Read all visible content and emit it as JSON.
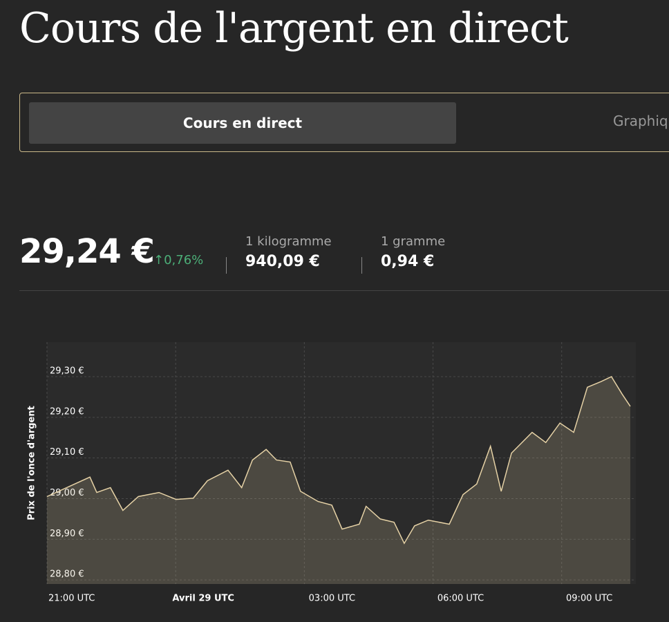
{
  "header": {
    "title": "Cours de l'argent en direct"
  },
  "tabs": [
    "Cours en direct",
    "Graphique"
  ],
  "price": {
    "value": "29,24 €",
    "change": "0,76%",
    "units": [
      {
        "label": "1 kilogramme",
        "value": "940,09 €"
      },
      {
        "label": "1 gramme",
        "value": "0,94 €"
      }
    ]
  },
  "chart_data": {
    "type": "line",
    "y_label": "Prix de l'once d'argent",
    "color": "#e6d2a6",
    "grid": true,
    "x": [
      21.0,
      22.0,
      22.16,
      22.48,
      22.77,
      23.13,
      23.61,
      24.01,
      24.41,
      24.74,
      25.22,
      25.54,
      25.79,
      26.11,
      26.35,
      26.67,
      26.91,
      27.32,
      27.64,
      27.88,
      28.28,
      28.44,
      28.77,
      29.09,
      29.33,
      29.57,
      29.89,
      30.38,
      30.7,
      31.02,
      31.34,
      31.59,
      31.83,
      32.31,
      32.63,
      32.96,
      33.28,
      33.6,
      33.92,
      34.16,
      34.41,
      34.6
    ],
    "values": [
      29.005,
      29.053,
      29.015,
      29.027,
      28.971,
      29.005,
      29.015,
      28.998,
      29.001,
      29.044,
      29.07,
      29.027,
      29.095,
      29.121,
      29.095,
      29.09,
      29.018,
      28.993,
      28.984,
      28.925,
      28.937,
      28.981,
      28.95,
      28.942,
      28.89,
      28.933,
      28.947,
      28.937,
      29.01,
      29.036,
      29.129,
      29.018,
      29.112,
      29.163,
      29.138,
      29.186,
      29.163,
      29.274,
      29.288,
      29.3,
      29.257,
      29.227
    ],
    "xlim": [
      21,
      34.6
    ],
    "xticks": [
      {
        "value": 21,
        "label": "21:00 UTC"
      },
      {
        "value": 24,
        "label": "Avril 29 UTC"
      },
      {
        "value": 27,
        "label": "03:00 UTC"
      },
      {
        "value": 30,
        "label": "06:00 UTC"
      },
      {
        "value": 33,
        "label": "09:00 UTC"
      }
    ],
    "ylim": [
      28.79,
      29.385
    ],
    "yticks": [
      {
        "value": 28.8,
        "label": "28,80 €"
      },
      {
        "value": 28.9,
        "label": "28,90 €"
      },
      {
        "value": 29.0,
        "label": "29,00 €"
      },
      {
        "value": 29.1,
        "label": "29,10 €"
      },
      {
        "value": 29.2,
        "label": "29,20 €"
      },
      {
        "value": 29.3,
        "label": "29,30 €"
      }
    ]
  }
}
